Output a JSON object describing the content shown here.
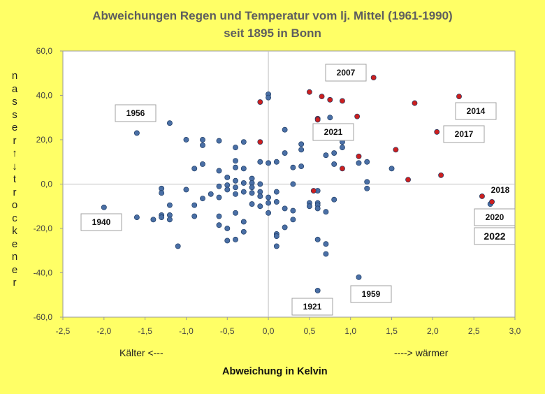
{
  "chart_data": {
    "type": "scatter",
    "title": "Abweichungen Regen und Temperatur vom lj. Mittel (1961-1990)",
    "subtitle": "seit 1895 in Bonn",
    "xlabel": "Abweichung in  Kelvin",
    "ylabel": "nasser ↑ ↓ trockener",
    "x_hint_left": "Kälter  <---",
    "x_hint_right": "----> wärmer",
    "xlim": [
      -2.5,
      3.0
    ],
    "ylim": [
      -60,
      60
    ],
    "xticks": [
      "-2,5",
      "-2,0",
      "-1,5",
      "-1,0",
      "-0,5",
      "0,0",
      "0,5",
      "1,0",
      "1,5",
      "2,0",
      "2,5",
      "3,0"
    ],
    "yticks": [
      "60,0",
      "40,0",
      "20,0",
      "0,0",
      "-20,0",
      "-40,0",
      "-60,0"
    ],
    "grid": false,
    "colors": {
      "blue": "#4a6fa5",
      "red": "#cc1f1f",
      "axis": "#bfbfbf"
    },
    "series": [
      {
        "color": "blue",
        "points": [
          [
            -2.0,
            -10.5
          ],
          [
            -1.6,
            -15
          ],
          [
            -1.6,
            23
          ],
          [
            -1.4,
            -16
          ],
          [
            -1.3,
            -2
          ],
          [
            -1.3,
            -4
          ],
          [
            -1.3,
            -14
          ],
          [
            -1.3,
            -15
          ],
          [
            -1.2,
            27.5
          ],
          [
            -1.2,
            -9.5
          ],
          [
            -1.2,
            -14
          ],
          [
            -1.2,
            -16
          ],
          [
            -1.1,
            -28
          ],
          [
            -1.0,
            20
          ],
          [
            -1.0,
            -2.5
          ],
          [
            -0.9,
            7
          ],
          [
            -0.9,
            -9.5
          ],
          [
            -0.9,
            -14.5
          ],
          [
            -0.8,
            20
          ],
          [
            -0.8,
            17.5
          ],
          [
            -0.8,
            9
          ],
          [
            -0.8,
            -6.5
          ],
          [
            -0.7,
            -4.5
          ],
          [
            -0.6,
            19.5
          ],
          [
            -0.6,
            6
          ],
          [
            -0.6,
            -1
          ],
          [
            -0.6,
            -6
          ],
          [
            -0.6,
            -14.5
          ],
          [
            -0.6,
            -18.5
          ],
          [
            -0.5,
            3
          ],
          [
            -0.5,
            -0.5
          ],
          [
            -0.5,
            -2.5
          ],
          [
            -0.5,
            -20
          ],
          [
            -0.5,
            -25.5
          ],
          [
            -0.4,
            16.5
          ],
          [
            -0.4,
            10.5
          ],
          [
            -0.4,
            7.5
          ],
          [
            -0.4,
            1.5
          ],
          [
            -0.4,
            -1.5
          ],
          [
            -0.4,
            -4.5
          ],
          [
            -0.4,
            -13
          ],
          [
            -0.4,
            -25
          ],
          [
            -0.3,
            19
          ],
          [
            -0.3,
            7
          ],
          [
            -0.3,
            0.5
          ],
          [
            -0.3,
            -3.5
          ],
          [
            -0.3,
            -17
          ],
          [
            -0.3,
            -21.5
          ],
          [
            -0.2,
            2.5
          ],
          [
            -0.2,
            0.5
          ],
          [
            -0.2,
            -1.5
          ],
          [
            -0.2,
            -4
          ],
          [
            -0.2,
            -9
          ],
          [
            -0.1,
            10
          ],
          [
            -0.1,
            0
          ],
          [
            -0.1,
            -3.5
          ],
          [
            -0.1,
            -5.5
          ],
          [
            -0.1,
            -10
          ],
          [
            0.0,
            40.5
          ],
          [
            0.0,
            39
          ],
          [
            0.0,
            9.5
          ],
          [
            0.0,
            -6
          ],
          [
            0.0,
            -8.5
          ],
          [
            0.0,
            -13
          ],
          [
            0.1,
            10
          ],
          [
            0.1,
            -3.5
          ],
          [
            0.1,
            -8
          ],
          [
            0.1,
            -22.5
          ],
          [
            0.1,
            -23.5
          ],
          [
            0.1,
            -28
          ],
          [
            0.2,
            24.5
          ],
          [
            0.2,
            14
          ],
          [
            0.2,
            -11
          ],
          [
            0.2,
            -19.5
          ],
          [
            0.3,
            7.5
          ],
          [
            0.3,
            0
          ],
          [
            0.3,
            -12
          ],
          [
            0.3,
            -16
          ],
          [
            0.4,
            18
          ],
          [
            0.4,
            15.5
          ],
          [
            0.4,
            8
          ],
          [
            0.5,
            -8.5
          ],
          [
            0.5,
            -10
          ],
          [
            0.6,
            -3
          ],
          [
            0.6,
            -8.5
          ],
          [
            0.6,
            -9.5
          ],
          [
            0.6,
            -11
          ],
          [
            0.6,
            -25
          ],
          [
            0.6,
            -48
          ],
          [
            0.7,
            13
          ],
          [
            0.7,
            -12.5
          ],
          [
            0.7,
            -27
          ],
          [
            0.7,
            -31.5
          ],
          [
            0.75,
            30
          ],
          [
            0.8,
            14
          ],
          [
            0.8,
            9
          ],
          [
            0.8,
            -7
          ],
          [
            0.9,
            19
          ],
          [
            0.9,
            16.5
          ],
          [
            1.1,
            9.5
          ],
          [
            1.1,
            -42
          ],
          [
            1.2,
            10
          ],
          [
            1.2,
            1
          ],
          [
            1.2,
            -2
          ],
          [
            1.5,
            7
          ],
          [
            2.7,
            -9
          ]
        ]
      },
      {
        "color": "red",
        "points": [
          [
            -0.1,
            37
          ],
          [
            -0.1,
            19
          ],
          [
            0.5,
            41.5
          ],
          [
            0.55,
            -3
          ],
          [
            0.6,
            29.5
          ],
          [
            0.6,
            29
          ],
          [
            0.65,
            39.5
          ],
          [
            0.75,
            38
          ],
          [
            0.9,
            37.5
          ],
          [
            0.9,
            7
          ],
          [
            1.08,
            30.5
          ],
          [
            1.1,
            12.5
          ],
          [
            1.28,
            48
          ],
          [
            1.55,
            15.5
          ],
          [
            1.7,
            2
          ],
          [
            1.78,
            36.5
          ],
          [
            2.05,
            23.5
          ],
          [
            2.1,
            4
          ],
          [
            2.32,
            39.5
          ],
          [
            2.6,
            -5.5
          ],
          [
            2.72,
            -8
          ]
        ]
      }
    ],
    "annotations": [
      {
        "label": "2007",
        "point": [
          1.28,
          48
        ]
      },
      {
        "label": "1956",
        "point": [
          -1.6,
          23
        ]
      },
      {
        "label": "2021",
        "point": [
          0.6,
          29
        ]
      },
      {
        "label": "2014",
        "point": [
          2.32,
          39.5
        ]
      },
      {
        "label": "2017",
        "point": [
          2.05,
          23.5
        ]
      },
      {
        "label": "2018",
        "point": [
          2.72,
          -8
        ]
      },
      {
        "label": "1940",
        "point": [
          -2.0,
          -10.5
        ]
      },
      {
        "label": "2020",
        "point": [
          2.7,
          -9
        ]
      },
      {
        "label": "2022",
        "point": [
          2.72,
          -8
        ]
      },
      {
        "label": "1959",
        "point": [
          1.1,
          -42
        ]
      },
      {
        "label": "1921",
        "point": [
          0.6,
          -48
        ]
      }
    ]
  }
}
